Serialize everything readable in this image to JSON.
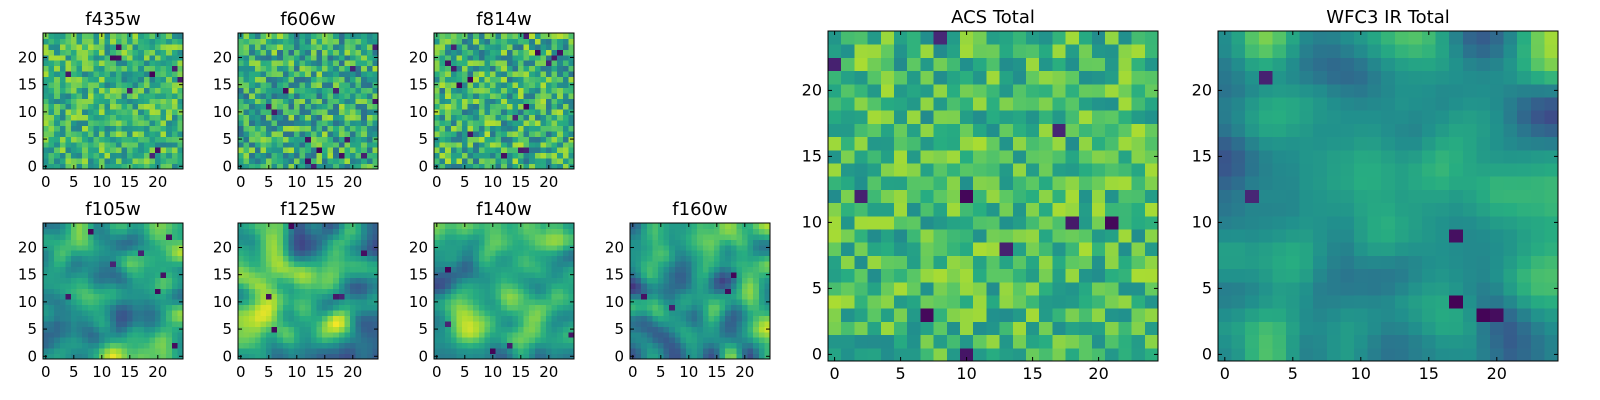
{
  "figure": {
    "background": "#ffffff",
    "colormap": "viridis",
    "colormap_stops": [
      "#440154",
      "#3b528b",
      "#21918c",
      "#5ec962",
      "#fde725"
    ]
  },
  "chart_data": [
    {
      "type": "heatmap",
      "title": "f435w",
      "xlim": [
        0,
        24
      ],
      "ylim": [
        0,
        24
      ],
      "grid_size": 25,
      "xticks": [
        "0",
        "5",
        "10",
        "15",
        "20"
      ],
      "yticks": [
        "0",
        "5",
        "10",
        "15",
        "20"
      ],
      "value_range": [
        0,
        1
      ],
      "texture": "noise",
      "level": 0.66,
      "contrast": 0.22,
      "dark_spots": 10,
      "seed": 11
    },
    {
      "type": "heatmap",
      "title": "f606w",
      "xlim": [
        0,
        24
      ],
      "ylim": [
        0,
        24
      ],
      "grid_size": 25,
      "xticks": [
        "0",
        "5",
        "10",
        "15",
        "20"
      ],
      "yticks": [
        "0",
        "5",
        "10",
        "15",
        "20"
      ],
      "value_range": [
        0,
        1
      ],
      "texture": "noise",
      "level": 0.62,
      "contrast": 0.26,
      "dark_spots": 14,
      "seed": 23
    },
    {
      "type": "heatmap",
      "title": "f814w",
      "xlim": [
        0,
        24
      ],
      "ylim": [
        0,
        24
      ],
      "grid_size": 25,
      "xticks": [
        "0",
        "5",
        "10",
        "15",
        "20"
      ],
      "yticks": [
        "0",
        "5",
        "10",
        "15",
        "20"
      ],
      "value_range": [
        0,
        1
      ],
      "texture": "noise",
      "level": 0.64,
      "contrast": 0.26,
      "dark_spots": 16,
      "seed": 37
    },
    {
      "type": "heatmap",
      "title": "f105w",
      "xlim": [
        0,
        24
      ],
      "ylim": [
        0,
        24
      ],
      "grid_size": 25,
      "xticks": [
        "0",
        "5",
        "10",
        "15",
        "20"
      ],
      "yticks": [
        "0",
        "5",
        "10",
        "15",
        "20"
      ],
      "value_range": [
        0,
        1
      ],
      "texture": "smooth",
      "level": 0.62,
      "contrast": 0.5,
      "dark_spots": 8,
      "seed": 41
    },
    {
      "type": "heatmap",
      "title": "f125w",
      "xlim": [
        0,
        24
      ],
      "ylim": [
        0,
        24
      ],
      "grid_size": 25,
      "xticks": [
        "0",
        "5",
        "10",
        "15",
        "20"
      ],
      "yticks": [
        "0",
        "5",
        "10",
        "15",
        "20"
      ],
      "value_range": [
        0,
        1
      ],
      "texture": "smooth",
      "level": 0.6,
      "contrast": 0.55,
      "dark_spots": 6,
      "seed": 53
    },
    {
      "type": "heatmap",
      "title": "f140w",
      "xlim": [
        0,
        24
      ],
      "ylim": [
        0,
        24
      ],
      "grid_size": 25,
      "xticks": [
        "0",
        "5",
        "10",
        "15",
        "20"
      ],
      "yticks": [
        "0",
        "5",
        "10",
        "15",
        "20"
      ],
      "value_range": [
        0,
        1
      ],
      "texture": "smooth",
      "level": 0.58,
      "contrast": 0.5,
      "dark_spots": 5,
      "seed": 67
    },
    {
      "type": "heatmap",
      "title": "f160w",
      "xlim": [
        0,
        24
      ],
      "ylim": [
        0,
        24
      ],
      "grid_size": 25,
      "xticks": [
        "0",
        "5",
        "10",
        "15",
        "20"
      ],
      "yticks": [
        "0",
        "5",
        "10",
        "15",
        "20"
      ],
      "value_range": [
        0,
        1
      ],
      "texture": "smooth",
      "level": 0.55,
      "contrast": 0.55,
      "dark_spots": 4,
      "seed": 79
    },
    {
      "type": "heatmap",
      "title": "ACS Total",
      "xlim": [
        0,
        24
      ],
      "ylim": [
        0,
        24
      ],
      "grid_size": 25,
      "xticks": [
        "0",
        "5",
        "10",
        "15",
        "20"
      ],
      "yticks": [
        "0",
        "5",
        "10",
        "15",
        "20"
      ],
      "value_range": [
        0,
        1
      ],
      "texture": "noise",
      "level": 0.68,
      "contrast": 0.2,
      "dark_spots": 10,
      "seed": 97
    },
    {
      "type": "heatmap",
      "title": "WFC3 IR Total",
      "xlim": [
        0,
        24
      ],
      "ylim": [
        0,
        24
      ],
      "grid_size": 25,
      "xticks": [
        "0",
        "5",
        "10",
        "15",
        "20"
      ],
      "yticks": [
        "0",
        "5",
        "10",
        "15",
        "20"
      ],
      "value_range": [
        0,
        1
      ],
      "texture": "smooth",
      "level": 0.55,
      "contrast": 0.45,
      "dark_spots": 6,
      "seed": 113
    }
  ]
}
